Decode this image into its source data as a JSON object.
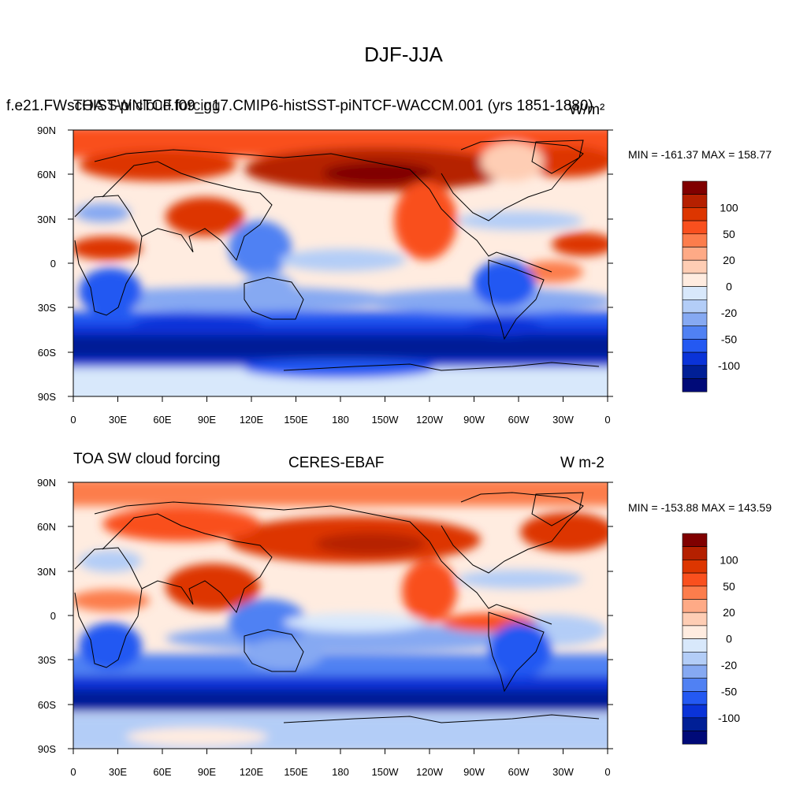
{
  "figure_title": "DJF-JJA",
  "colors": {
    "levels": [
      "#800000",
      "#b52000",
      "#dd3600",
      "#f9501e",
      "#fc7d4c",
      "#feaa86",
      "#fecdb4",
      "#ffece0",
      "#d8e8fb",
      "#b3cdf7",
      "#86a9f2",
      "#5081f3",
      "#2459f2",
      "#0a33d8",
      "#001f96",
      "#000a78"
    ],
    "land_lines": "#000000"
  },
  "colorbar_labels": [
    "100",
    "50",
    "20",
    "0",
    "-20",
    "-50",
    "-100"
  ],
  "panels": [
    {
      "left_label": "f.e21.FWscHIST-piNTCF.f09_g17.CMIP6-histSST-piNTCF-WACCM.001 (yrs 1851-1880)",
      "overlap_label_1": "TOA SW cloud forcing",
      "center_label": "",
      "right_label": "W/m²",
      "min_max": "MIN = -161.37 MAX = 158.77"
    },
    {
      "left_label": "TOA SW cloud forcing",
      "center_label": "CERES-EBAF",
      "right_label": "W m-2",
      "min_max": "MIN = -153.88 MAX = 143.59"
    }
  ],
  "axes": {
    "lat_labels": [
      "90N",
      "60N",
      "30N",
      "0",
      "30S",
      "60S",
      "90S"
    ],
    "lon_labels": [
      "0",
      "30E",
      "60E",
      "90E",
      "120E",
      "150E",
      "180",
      "150W",
      "120W",
      "90W",
      "60W",
      "30W",
      "0"
    ]
  }
}
